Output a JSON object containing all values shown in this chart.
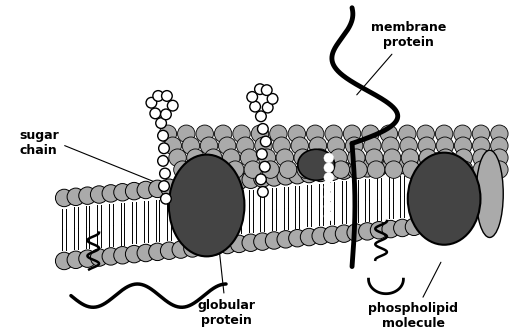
{
  "bg_color": "#ffffff",
  "mem_gray": "#aaaaaa",
  "mem_light": "#bbbbbb",
  "protein_dark": "#444444",
  "protein_med": "#666666",
  "outline": "#000000",
  "text_color": "#000000",
  "labels": {
    "sugar_chain": "sugar\nchain",
    "membrane_protein": "membrane\nprotein",
    "globular_protein": "globular\nprotein",
    "phospholipid": "phospholipid\nmolecule"
  }
}
